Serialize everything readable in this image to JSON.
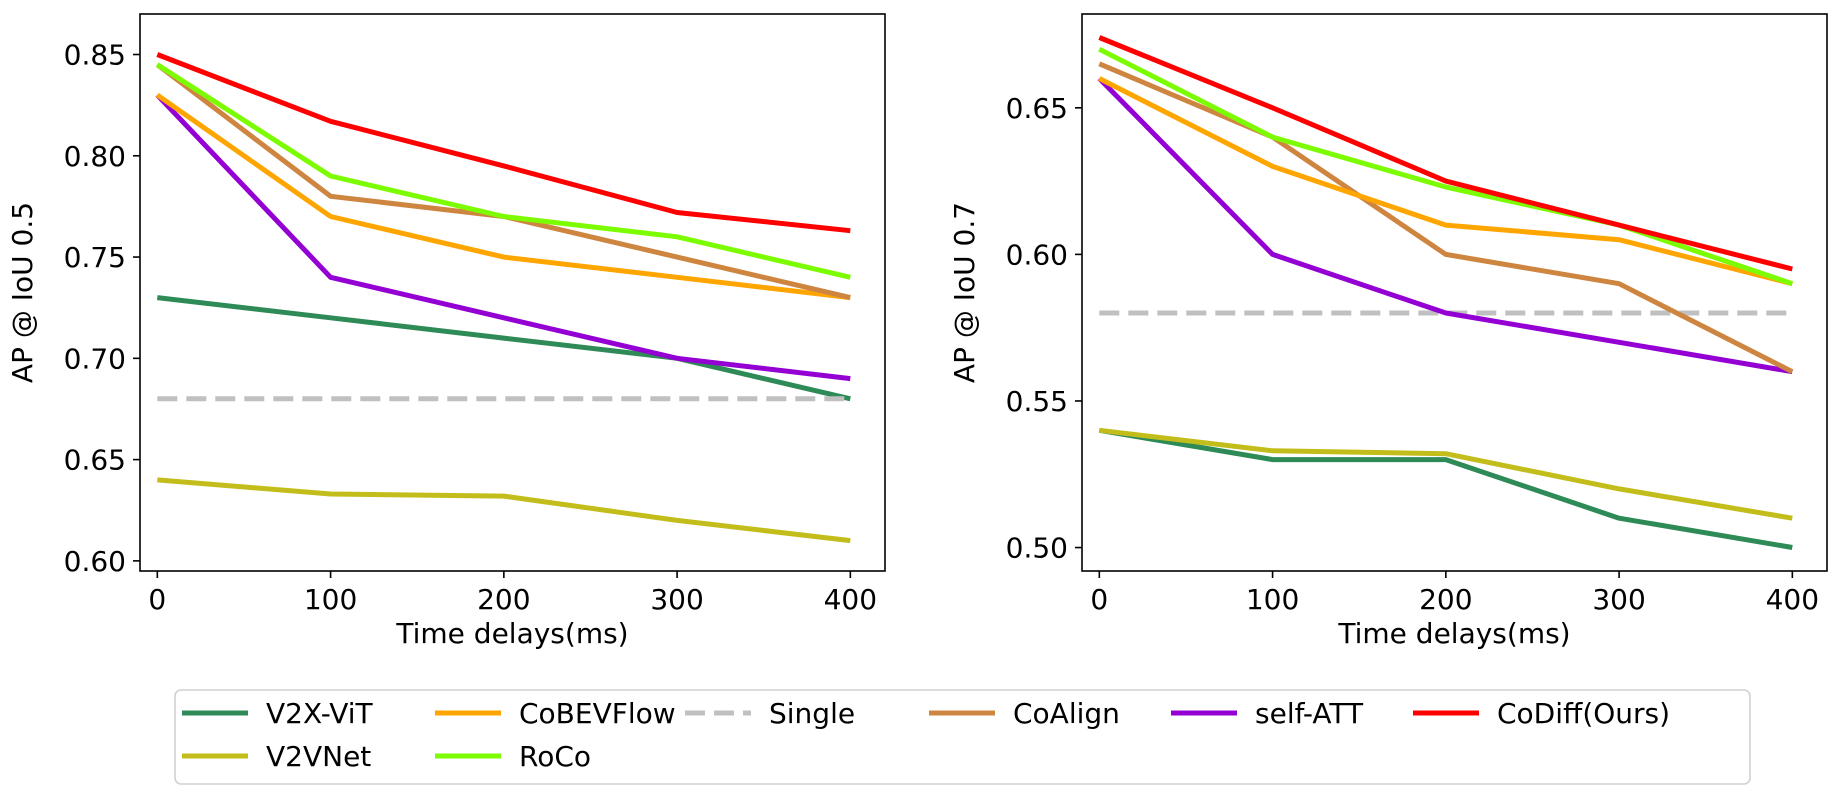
{
  "legend": {
    "columns": 6,
    "entries": [
      {
        "key": "v2x_vit",
        "label": "V2X-ViT"
      },
      {
        "key": "v2vnet",
        "label": "V2VNet"
      },
      {
        "key": "cobevflow",
        "label": "CoBEVFlow"
      },
      {
        "key": "roco",
        "label": "RoCo"
      },
      {
        "key": "single",
        "label": "Single"
      },
      {
        "key": "coalign",
        "label": "CoAlign"
      },
      {
        "key": "self_att",
        "label": "self-ATT"
      },
      {
        "key": "codiff",
        "label": "CoDiff(Ours)"
      }
    ]
  },
  "styles": {
    "v2x_vit": {
      "color": "#2e8b57",
      "dash": "solid"
    },
    "v2vnet": {
      "color": "#c2bd1a",
      "dash": "solid"
    },
    "cobevflow": {
      "color": "#ffa500",
      "dash": "solid"
    },
    "roco": {
      "color": "#7cfc00",
      "dash": "solid"
    },
    "single": {
      "color": "#c0c0c0",
      "dash": "dashed"
    },
    "coalign": {
      "color": "#cd853f",
      "dash": "solid"
    },
    "self_att": {
      "color": "#9400d3",
      "dash": "solid"
    },
    "codiff": {
      "color": "#ff0000",
      "dash": "solid"
    }
  },
  "chart_data": [
    {
      "type": "line",
      "title": "",
      "xlabel": "Time delays(ms)",
      "ylabel": "AP @ IoU 0.5",
      "x": [
        0,
        100,
        200,
        300,
        400
      ],
      "xlim": [
        -10,
        420
      ],
      "ylim": [
        0.595,
        0.87
      ],
      "xticks": [
        0,
        100,
        200,
        300,
        400
      ],
      "xtick_labels": [
        "0",
        "100",
        "200",
        "300",
        "400"
      ],
      "yticks": [
        0.6,
        0.65,
        0.7,
        0.75,
        0.8,
        0.85
      ],
      "ytick_labels": [
        "0.60",
        "0.65",
        "0.70",
        "0.75",
        "0.80",
        "0.85"
      ],
      "grid": false,
      "series": [
        {
          "key": "v2x_vit",
          "name": "V2X-ViT",
          "values": [
            0.73,
            0.72,
            0.71,
            0.7,
            0.68
          ]
        },
        {
          "key": "v2vnet",
          "name": "V2VNet",
          "values": [
            0.64,
            0.633,
            0.632,
            0.62,
            0.61
          ]
        },
        {
          "key": "single",
          "name": "Single",
          "values": [
            0.68,
            0.68,
            0.68,
            0.68,
            0.68
          ]
        },
        {
          "key": "self_att",
          "name": "self-ATT",
          "values": [
            0.83,
            0.74,
            0.72,
            0.7,
            0.69
          ]
        },
        {
          "key": "cobevflow",
          "name": "CoBEVFlow",
          "values": [
            0.83,
            0.77,
            0.75,
            0.74,
            0.73
          ]
        },
        {
          "key": "coalign",
          "name": "CoAlign",
          "values": [
            0.845,
            0.78,
            0.77,
            0.75,
            0.73
          ]
        },
        {
          "key": "roco",
          "name": "RoCo",
          "values": [
            0.845,
            0.79,
            0.77,
            0.76,
            0.74
          ]
        },
        {
          "key": "codiff",
          "name": "CoDiff(Ours)",
          "values": [
            0.85,
            0.817,
            0.795,
            0.772,
            0.763
          ]
        }
      ]
    },
    {
      "type": "line",
      "title": "",
      "xlabel": "Time delays(ms)",
      "ylabel": "AP @ IoU 0.7",
      "x": [
        0,
        100,
        200,
        300,
        400
      ],
      "xlim": [
        -10,
        420
      ],
      "ylim": [
        0.492,
        0.682
      ],
      "xticks": [
        0,
        100,
        200,
        300,
        400
      ],
      "xtick_labels": [
        "0",
        "100",
        "200",
        "300",
        "400"
      ],
      "yticks": [
        0.5,
        0.55,
        0.6,
        0.65
      ],
      "ytick_labels": [
        "0.50",
        "0.55",
        "0.60",
        "0.65"
      ],
      "grid": false,
      "series": [
        {
          "key": "v2x_vit",
          "name": "V2X-ViT",
          "values": [
            0.54,
            0.53,
            0.53,
            0.51,
            0.5
          ]
        },
        {
          "key": "v2vnet",
          "name": "V2VNet",
          "values": [
            0.54,
            0.533,
            0.532,
            0.52,
            0.51
          ]
        },
        {
          "key": "single",
          "name": "Single",
          "values": [
            0.58,
            0.58,
            0.58,
            0.58,
            0.58
          ]
        },
        {
          "key": "self_att",
          "name": "self-ATT",
          "values": [
            0.66,
            0.6,
            0.58,
            0.57,
            0.56
          ]
        },
        {
          "key": "coalign",
          "name": "CoAlign",
          "values": [
            0.665,
            0.64,
            0.6,
            0.59,
            0.56
          ]
        },
        {
          "key": "cobevflow",
          "name": "CoBEVFlow",
          "values": [
            0.66,
            0.63,
            0.61,
            0.605,
            0.59
          ]
        },
        {
          "key": "roco",
          "name": "RoCo",
          "values": [
            0.67,
            0.64,
            0.623,
            0.61,
            0.59
          ]
        },
        {
          "key": "codiff",
          "name": "CoDiff(Ours)",
          "values": [
            0.674,
            0.65,
            0.625,
            0.61,
            0.595
          ]
        }
      ]
    }
  ]
}
